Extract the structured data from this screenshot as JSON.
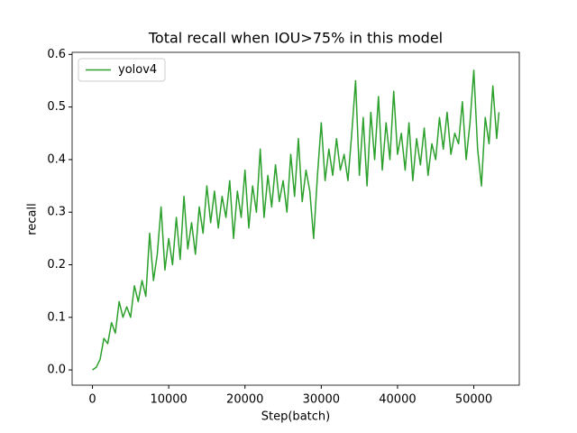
{
  "chart_data": {
    "type": "line",
    "title": "Total recall when IOU>75% in this model",
    "xlabel": "Step(batch)",
    "ylabel": "recall",
    "x": [
      0,
      500,
      1000,
      1500,
      2000,
      2500,
      3000,
      3500,
      4000,
      4500,
      5000,
      5500,
      6000,
      6500,
      7000,
      7500,
      8000,
      8500,
      9000,
      9500,
      10000,
      10500,
      11000,
      11500,
      12000,
      12500,
      13000,
      13500,
      14000,
      14500,
      15000,
      15500,
      16000,
      16500,
      17000,
      17500,
      18000,
      18500,
      19000,
      19500,
      20000,
      20500,
      21000,
      21500,
      22000,
      22500,
      23000,
      23500,
      24000,
      24500,
      25000,
      25500,
      26000,
      26500,
      27000,
      27500,
      28000,
      28500,
      29000,
      29500,
      30000,
      30500,
      31000,
      31500,
      32000,
      32500,
      33000,
      33500,
      34000,
      34500,
      35000,
      35500,
      36000,
      36500,
      37000,
      37500,
      38000,
      38500,
      39000,
      39500,
      40000,
      40500,
      41000,
      41500,
      42000,
      42500,
      43000,
      43500,
      44000,
      44500,
      45000,
      45500,
      46000,
      46500,
      47000,
      47500,
      48000,
      48500,
      49000,
      49500,
      50000,
      50500,
      51000,
      51500,
      52000,
      52500,
      53000,
      53300
    ],
    "series": [
      {
        "name": "yolov4",
        "color": "#2ca02c",
        "values": [
          0.0,
          0.005,
          0.02,
          0.06,
          0.05,
          0.09,
          0.07,
          0.13,
          0.1,
          0.12,
          0.1,
          0.16,
          0.13,
          0.17,
          0.14,
          0.26,
          0.17,
          0.22,
          0.31,
          0.19,
          0.25,
          0.2,
          0.29,
          0.21,
          0.33,
          0.23,
          0.28,
          0.22,
          0.31,
          0.26,
          0.35,
          0.28,
          0.34,
          0.27,
          0.33,
          0.29,
          0.36,
          0.25,
          0.34,
          0.29,
          0.38,
          0.27,
          0.35,
          0.3,
          0.42,
          0.29,
          0.37,
          0.31,
          0.39,
          0.32,
          0.36,
          0.3,
          0.41,
          0.33,
          0.44,
          0.32,
          0.38,
          0.34,
          0.25,
          0.37,
          0.47,
          0.36,
          0.42,
          0.37,
          0.44,
          0.38,
          0.41,
          0.36,
          0.45,
          0.55,
          0.37,
          0.48,
          0.35,
          0.49,
          0.4,
          0.52,
          0.38,
          0.47,
          0.4,
          0.53,
          0.41,
          0.45,
          0.38,
          0.47,
          0.36,
          0.44,
          0.39,
          0.46,
          0.37,
          0.43,
          0.4,
          0.48,
          0.42,
          0.49,
          0.41,
          0.45,
          0.43,
          0.51,
          0.4,
          0.47,
          0.57,
          0.42,
          0.35,
          0.48,
          0.43,
          0.54,
          0.44,
          0.49
        ]
      }
    ],
    "xlim": [
      -2665,
      55965
    ],
    "xticks": [
      0,
      10000,
      20000,
      30000,
      40000,
      50000
    ],
    "ylim": [
      -0.029,
      0.604
    ],
    "yticks": [
      {
        "value": 0,
        "label": "0.0"
      },
      0.1,
      0.2,
      0.3,
      0.4,
      0.5,
      0.6
    ],
    "legend": "upper left"
  }
}
